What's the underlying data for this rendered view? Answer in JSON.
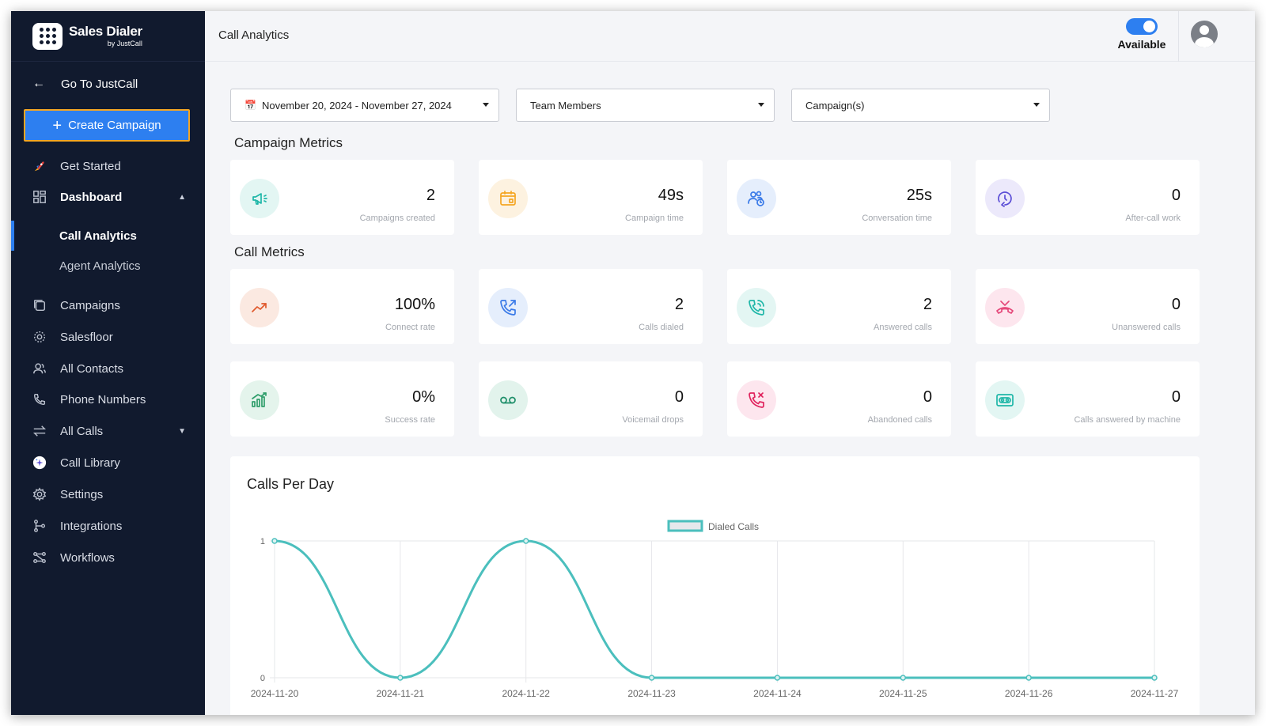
{
  "sidebar": {
    "logo_title": "Sales Dialer",
    "logo_subtitle": "by JustCall",
    "go_to": "Go To JustCall",
    "create_campaign": "Create Campaign",
    "get_started": "Get Started",
    "dashboard": "Dashboard",
    "dashboard_sub": [
      "Call Analytics",
      "Agent Analytics"
    ],
    "items": [
      {
        "label": "Campaigns",
        "icon": "campaigns-icon"
      },
      {
        "label": "Salesfloor",
        "icon": "salesfloor-icon"
      },
      {
        "label": "All Contacts",
        "icon": "contacts-icon"
      },
      {
        "label": "Phone Numbers",
        "icon": "phone-icon"
      },
      {
        "label": "All Calls",
        "icon": "swap-icon"
      },
      {
        "label": "Call Library",
        "icon": "call-library-icon"
      },
      {
        "label": "Settings",
        "icon": "gear-icon"
      },
      {
        "label": "Integrations",
        "icon": "integrations-icon"
      },
      {
        "label": "Workflows",
        "icon": "workflows-icon"
      }
    ]
  },
  "header": {
    "title": "Call Analytics",
    "status_label": "Available"
  },
  "filters": {
    "date_range": "November 20, 2024 - November 27, 2024",
    "team_members": "Team Members",
    "campaigns": "Campaign(s)"
  },
  "campaign_metrics": {
    "title": "Campaign Metrics",
    "cards": [
      {
        "value": "2",
        "label": "Campaigns created",
        "icon": "megaphone-icon",
        "color": "#1fb7a8",
        "bg": "#e3f6f3"
      },
      {
        "value": "49s",
        "label": "Campaign time",
        "icon": "calendar-icon",
        "color": "#f5a623",
        "bg": "#fdf2e0"
      },
      {
        "value": "25s",
        "label": "Conversation time",
        "icon": "users-clock-icon",
        "color": "#3b7be8",
        "bg": "#e5eefc"
      },
      {
        "value": "0",
        "label": "After-call work",
        "icon": "clock-back-icon",
        "color": "#5b4ed6",
        "bg": "#ece9fb"
      }
    ]
  },
  "call_metrics": {
    "title": "Call Metrics",
    "cards": [
      {
        "value": "100%",
        "label": "Connect rate",
        "icon": "trend-up-icon",
        "color": "#e0582b",
        "bg": "#fbe9e1"
      },
      {
        "value": "2",
        "label": "Calls dialed",
        "icon": "phone-outgoing-icon",
        "color": "#3b7be8",
        "bg": "#e5eefc"
      },
      {
        "value": "2",
        "label": "Answered calls",
        "icon": "phone-ringing-icon",
        "color": "#1fb7a8",
        "bg": "#e3f6f3"
      },
      {
        "value": "0",
        "label": "Unanswered calls",
        "icon": "phone-missed-icon",
        "color": "#e5487a",
        "bg": "#fde6ee"
      },
      {
        "value": "0%",
        "label": "Success rate",
        "icon": "bar-chart-icon",
        "color": "#2f9e6b",
        "bg": "#e4f4ec"
      },
      {
        "value": "0",
        "label": "Voicemail drops",
        "icon": "voicemail-icon",
        "color": "#1f8f6a",
        "bg": "#e2f3ec"
      },
      {
        "value": "0",
        "label": "Abandoned calls",
        "icon": "phone-x-icon",
        "color": "#e0245e",
        "bg": "#fde6ee"
      },
      {
        "value": "0",
        "label": "Calls answered by machine",
        "icon": "machine-icon",
        "color": "#1fb7a8",
        "bg": "#e3f6f3"
      }
    ]
  },
  "chart_data": {
    "type": "line",
    "title": "Calls Per Day",
    "x": [
      "2024-11-20",
      "2024-11-21",
      "2024-11-22",
      "2024-11-23",
      "2024-11-24",
      "2024-11-25",
      "2024-11-26",
      "2024-11-27"
    ],
    "series": [
      {
        "name": "Dialed Calls",
        "values": [
          1,
          0,
          1,
          0,
          0,
          0,
          0,
          0
        ],
        "color": "#4bbfbd"
      }
    ],
    "yticks": [
      0,
      1
    ],
    "ylim": [
      0,
      1
    ],
    "grid": true,
    "legend": "top-center"
  }
}
